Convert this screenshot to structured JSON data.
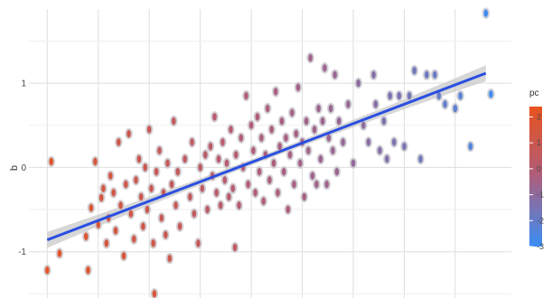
{
  "chart_data": {
    "type": "scatter",
    "ylabel": "b",
    "y_ticks": [
      1,
      0,
      -1
    ],
    "y_tick_labels": [
      "1",
      "0",
      "-1"
    ],
    "x_ticks": [
      -2,
      -1.5,
      -1,
      -0.5,
      0,
      0.5,
      1,
      1.5,
      2
    ],
    "xlim": [
      -2.18,
      2.55
    ],
    "ylim": [
      -1.55,
      1.88
    ],
    "grid": true,
    "legend": {
      "title": "pc",
      "placement": "right",
      "ticks": [
        2,
        1,
        0,
        -1,
        -2,
        -3
      ],
      "tick_labels": [
        "2",
        "1",
        "0",
        "-1",
        "-2",
        "-3"
      ],
      "range": [
        -3,
        2.4
      ],
      "colors": {
        "high": "#e8531d",
        "mid": "#b15c78",
        "low": "#3a8ef6"
      }
    },
    "fit": {
      "method": "linear",
      "intercept": 0.06,
      "slope": 0.46,
      "ci_halfwidth_edge": 0.095,
      "ci_halfwidth_center": 0.035,
      "x_range": [
        -2.0,
        2.3
      ],
      "line_color": "#2a4fe0"
    },
    "points": [
      {
        "x": -2.0,
        "y": -1.22,
        "pc": 2.2
      },
      {
        "x": -1.96,
        "y": 0.07,
        "pc": 2.1
      },
      {
        "x": -1.88,
        "y": -1.02,
        "pc": 2.0
      },
      {
        "x": -1.62,
        "y": -0.82,
        "pc": 1.8
      },
      {
        "x": -1.6,
        "y": -1.22,
        "pc": 2.0
      },
      {
        "x": -1.57,
        "y": -0.48,
        "pc": 1.7
      },
      {
        "x": -1.53,
        "y": 0.07,
        "pc": 1.6
      },
      {
        "x": -1.5,
        "y": -0.68,
        "pc": 1.6
      },
      {
        "x": -1.47,
        "y": -0.36,
        "pc": 1.5
      },
      {
        "x": -1.45,
        "y": -0.25,
        "pc": 1.4
      },
      {
        "x": -1.42,
        "y": -0.9,
        "pc": 1.6
      },
      {
        "x": -1.4,
        "y": -0.6,
        "pc": 1.5
      },
      {
        "x": -1.38,
        "y": -0.1,
        "pc": 1.4
      },
      {
        "x": -1.35,
        "y": -0.3,
        "pc": 1.3
      },
      {
        "x": -1.33,
        "y": -0.75,
        "pc": 1.5
      },
      {
        "x": -1.3,
        "y": 0.3,
        "pc": 1.2
      },
      {
        "x": -1.28,
        "y": -0.45,
        "pc": 1.3
      },
      {
        "x": -1.25,
        "y": -1.05,
        "pc": 1.7
      },
      {
        "x": -1.23,
        "y": -0.2,
        "pc": 1.2
      },
      {
        "x": -1.2,
        "y": 0.4,
        "pc": 1.1
      },
      {
        "x": -1.18,
        "y": -0.55,
        "pc": 1.3
      },
      {
        "x": -1.15,
        "y": -0.85,
        "pc": 1.4
      },
      {
        "x": -1.13,
        "y": -0.15,
        "pc": 1.1
      },
      {
        "x": -1.1,
        "y": 0.1,
        "pc": 1.0
      },
      {
        "x": -1.08,
        "y": -0.35,
        "pc": 1.1
      },
      {
        "x": -1.06,
        "y": -0.7,
        "pc": 1.3
      },
      {
        "x": -1.04,
        "y": 0.0,
        "pc": 1.0
      },
      {
        "x": -1.02,
        "y": -0.5,
        "pc": 1.1
      },
      {
        "x": -1.0,
        "y": 0.45,
        "pc": 0.9
      },
      {
        "x": -0.98,
        "y": -0.25,
        "pc": 1.0
      },
      {
        "x": -0.96,
        "y": -0.9,
        "pc": 1.3
      },
      {
        "x": -0.95,
        "y": -1.5,
        "pc": 1.6
      },
      {
        "x": -0.93,
        "y": -0.05,
        "pc": 0.9
      },
      {
        "x": -0.9,
        "y": 0.2,
        "pc": 0.8
      },
      {
        "x": -0.88,
        "y": -0.6,
        "pc": 1.0
      },
      {
        "x": -0.86,
        "y": -0.3,
        "pc": 0.9
      },
      {
        "x": -0.84,
        "y": -0.8,
        "pc": 1.1
      },
      {
        "x": -0.82,
        "y": 0.05,
        "pc": 0.8
      },
      {
        "x": -0.8,
        "y": -1.08,
        "pc": 1.2
      },
      {
        "x": -0.78,
        "y": -0.2,
        "pc": 0.8
      },
      {
        "x": -0.76,
        "y": 0.55,
        "pc": 0.7
      },
      {
        "x": -0.74,
        "y": -0.45,
        "pc": 0.9
      },
      {
        "x": -0.72,
        "y": -0.05,
        "pc": 0.7
      },
      {
        "x": -0.7,
        "y": -0.7,
        "pc": 0.9
      },
      {
        "x": -0.65,
        "y": 0.1,
        "pc": 0.6
      },
      {
        "x": -0.6,
        "y": -0.35,
        "pc": 0.7
      },
      {
        "x": -0.58,
        "y": 0.3,
        "pc": 0.6
      },
      {
        "x": -0.56,
        "y": -0.55,
        "pc": 0.7
      },
      {
        "x": -0.52,
        "y": -0.9,
        "pc": 0.8
      },
      {
        "x": -0.5,
        "y": 0.0,
        "pc": 0.5
      },
      {
        "x": -0.48,
        "y": -0.25,
        "pc": 0.5
      },
      {
        "x": -0.45,
        "y": 0.15,
        "pc": 0.4
      },
      {
        "x": -0.43,
        "y": -0.5,
        "pc": 0.5
      },
      {
        "x": -0.4,
        "y": 0.25,
        "pc": 0.4
      },
      {
        "x": -0.38,
        "y": -0.1,
        "pc": 0.4
      },
      {
        "x": -0.36,
        "y": 0.6,
        "pc": 0.3
      },
      {
        "x": -0.34,
        "y": -0.3,
        "pc": 0.4
      },
      {
        "x": -0.32,
        "y": 0.1,
        "pc": 0.3
      },
      {
        "x": -0.3,
        "y": -0.45,
        "pc": 0.4
      },
      {
        "x": -0.28,
        "y": 0.3,
        "pc": 0.3
      },
      {
        "x": -0.26,
        "y": -0.15,
        "pc": 0.3
      },
      {
        "x": -0.24,
        "y": 0.05,
        "pc": 0.2
      },
      {
        "x": -0.22,
        "y": -0.35,
        "pc": 0.3
      },
      {
        "x": -0.2,
        "y": 0.45,
        "pc": 0.2
      },
      {
        "x": -0.18,
        "y": -0.25,
        "pc": 0.2
      },
      {
        "x": -0.16,
        "y": -0.95,
        "pc": 0.6
      },
      {
        "x": -0.15,
        "y": 0.15,
        "pc": 0.2
      },
      {
        "x": -0.12,
        "y": -0.45,
        "pc": 0.2
      },
      {
        "x": -0.1,
        "y": 0.35,
        "pc": 0.1
      },
      {
        "x": -0.08,
        "y": 0.0,
        "pc": 0.1
      },
      {
        "x": -0.05,
        "y": 0.85,
        "pc": 0.1
      },
      {
        "x": -0.03,
        "y": -0.2,
        "pc": 0.1
      },
      {
        "x": 0.0,
        "y": 0.5,
        "pc": 0.0
      },
      {
        "x": 0.02,
        "y": 0.2,
        "pc": 0.0
      },
      {
        "x": 0.04,
        "y": -0.3,
        "pc": 0.0
      },
      {
        "x": 0.06,
        "y": 0.6,
        "pc": 0.0
      },
      {
        "x": 0.08,
        "y": -0.05,
        "pc": 0.0
      },
      {
        "x": 0.1,
        "y": 0.35,
        "pc": -0.1
      },
      {
        "x": 0.12,
        "y": -0.4,
        "pc": 0.0
      },
      {
        "x": 0.14,
        "y": 0.15,
        "pc": -0.1
      },
      {
        "x": 0.16,
        "y": 0.7,
        "pc": -0.1
      },
      {
        "x": 0.18,
        "y": -0.15,
        "pc": -0.1
      },
      {
        "x": 0.2,
        "y": 0.45,
        "pc": -0.1
      },
      {
        "x": 0.22,
        "y": 0.05,
        "pc": -0.1
      },
      {
        "x": 0.24,
        "y": 0.9,
        "pc": -0.2
      },
      {
        "x": 0.26,
        "y": -0.3,
        "pc": -0.1
      },
      {
        "x": 0.28,
        "y": 0.25,
        "pc": -0.2
      },
      {
        "x": 0.3,
        "y": 0.55,
        "pc": -0.2
      },
      {
        "x": 0.32,
        "y": -0.05,
        "pc": -0.2
      },
      {
        "x": 0.34,
        "y": 0.35,
        "pc": -0.2
      },
      {
        "x": 0.36,
        "y": -0.5,
        "pc": -0.1
      },
      {
        "x": 0.38,
        "y": 0.15,
        "pc": -0.2
      },
      {
        "x": 0.4,
        "y": 0.65,
        "pc": -0.3
      },
      {
        "x": 0.42,
        "y": -0.2,
        "pc": -0.2
      },
      {
        "x": 0.44,
        "y": 0.4,
        "pc": -0.3
      },
      {
        "x": 0.46,
        "y": 0.95,
        "pc": -0.3
      },
      {
        "x": 0.48,
        "y": 0.05,
        "pc": -0.3
      },
      {
        "x": 0.5,
        "y": 0.3,
        "pc": -0.3
      },
      {
        "x": 0.52,
        "y": -0.35,
        "pc": -0.3
      },
      {
        "x": 0.54,
        "y": 0.55,
        "pc": -0.4
      },
      {
        "x": 0.56,
        "y": 0.2,
        "pc": -0.4
      },
      {
        "x": 0.58,
        "y": 1.3,
        "pc": -0.4
      },
      {
        "x": 0.6,
        "y": -0.1,
        "pc": -0.4
      },
      {
        "x": 0.62,
        "y": 0.45,
        "pc": -0.4
      },
      {
        "x": 0.64,
        "y": -0.2,
        "pc": -0.4
      },
      {
        "x": 0.66,
        "y": 0.7,
        "pc": -0.5
      },
      {
        "x": 0.68,
        "y": 0.1,
        "pc": -0.5
      },
      {
        "x": 0.7,
        "y": 0.55,
        "pc": -0.5
      },
      {
        "x": 0.72,
        "y": 1.18,
        "pc": -0.5
      },
      {
        "x": 0.74,
        "y": -0.2,
        "pc": -0.5
      },
      {
        "x": 0.76,
        "y": 0.35,
        "pc": -0.5
      },
      {
        "x": 0.78,
        "y": 0.7,
        "pc": -0.6
      },
      {
        "x": 0.8,
        "y": 0.2,
        "pc": -0.6
      },
      {
        "x": 0.82,
        "y": 1.1,
        "pc": -0.6
      },
      {
        "x": 0.84,
        "y": -0.05,
        "pc": -0.6
      },
      {
        "x": 0.86,
        "y": 0.55,
        "pc": -0.6
      },
      {
        "x": 0.9,
        "y": 0.3,
        "pc": -0.7
      },
      {
        "x": 0.95,
        "y": 0.75,
        "pc": -0.7
      },
      {
        "x": 1.0,
        "y": 0.05,
        "pc": -0.8
      },
      {
        "x": 1.05,
        "y": 1.0,
        "pc": -0.9
      },
      {
        "x": 1.1,
        "y": 0.5,
        "pc": -0.9
      },
      {
        "x": 1.15,
        "y": 0.3,
        "pc": -1.0
      },
      {
        "x": 1.2,
        "y": 1.1,
        "pc": -1.1
      },
      {
        "x": 1.22,
        "y": 0.75,
        "pc": -1.1
      },
      {
        "x": 1.26,
        "y": 0.2,
        "pc": -1.1
      },
      {
        "x": 1.3,
        "y": 0.55,
        "pc": -1.2
      },
      {
        "x": 1.33,
        "y": 0.1,
        "pc": -1.2
      },
      {
        "x": 1.36,
        "y": 0.85,
        "pc": -1.3
      },
      {
        "x": 1.4,
        "y": 0.3,
        "pc": -1.3
      },
      {
        "x": 1.45,
        "y": 0.85,
        "pc": -1.4
      },
      {
        "x": 1.5,
        "y": 0.25,
        "pc": -1.4
      },
      {
        "x": 1.55,
        "y": 0.85,
        "pc": -1.5
      },
      {
        "x": 1.6,
        "y": 1.15,
        "pc": -1.6
      },
      {
        "x": 1.66,
        "y": 0.1,
        "pc": -1.6
      },
      {
        "x": 1.72,
        "y": 1.1,
        "pc": -1.7
      },
      {
        "x": 1.8,
        "y": 1.1,
        "pc": -1.8
      },
      {
        "x": 1.84,
        "y": 0.85,
        "pc": -1.9
      },
      {
        "x": 1.9,
        "y": 0.75,
        "pc": -2.0
      },
      {
        "x": 2.0,
        "y": 0.7,
        "pc": -2.1
      },
      {
        "x": 2.05,
        "y": 0.85,
        "pc": -2.2
      },
      {
        "x": 2.15,
        "y": 0.25,
        "pc": -2.4
      },
      {
        "x": 2.3,
        "y": 1.83,
        "pc": -2.9
      },
      {
        "x": 2.35,
        "y": 0.87,
        "pc": -2.8
      }
    ]
  }
}
